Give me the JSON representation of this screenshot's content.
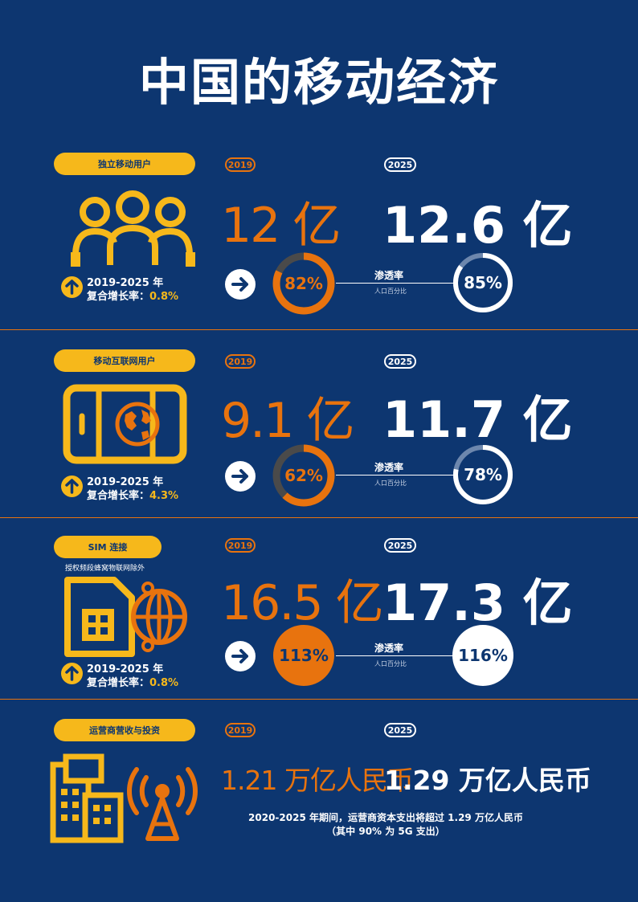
{
  "title": "中国的移动经济",
  "colors": {
    "background": "#0d3670",
    "orange": "#e8730e",
    "yellow": "#f6b81b",
    "white": "#ffffff"
  },
  "penetration_label": "渗透率",
  "penetration_sub": "人口百分比",
  "sections": [
    {
      "label": "独立移动用户",
      "icon": "users-icon",
      "year_2019": "2019",
      "year_2025": "2025",
      "value_2019": "12 亿",
      "value_2025": "12.6 亿",
      "pct_2019": "82%",
      "pct_2025": "85%",
      "pct_2019_value": 82,
      "pct_2025_value": 85,
      "growth_period": "2019-2025 年",
      "growth_label": "复合增长率：",
      "growth_value": "0.8%"
    },
    {
      "label": "移动互联网用户",
      "icon": "phone-globe-icon",
      "year_2019": "2019",
      "year_2025": "2025",
      "value_2019": "9.1 亿",
      "value_2025": "11.7 亿",
      "pct_2019": "62%",
      "pct_2025": "78%",
      "pct_2019_value": 62,
      "pct_2025_value": 78,
      "growth_period": "2019-2025 年",
      "growth_label": "复合增长率：",
      "growth_value": "4.3%"
    },
    {
      "label": "SIM 连接",
      "note": "授权频段蜂窝物联网除外",
      "icon": "sim-globe-icon",
      "year_2019": "2019",
      "year_2025": "2025",
      "value_2019": "16.5 亿",
      "value_2025": "17.3 亿",
      "pct_2019": "113%",
      "pct_2025": "116%",
      "pct_2019_value": 113,
      "pct_2025_value": 116,
      "growth_period": "2019-2025 年",
      "growth_label": "复合增长率：",
      "growth_value": "0.8%"
    },
    {
      "label": "运营商营收与投资",
      "icon": "buildings-tower-icon",
      "year_2019": "2019",
      "year_2025": "2025",
      "value_2019": "1.21 万亿人民币",
      "value_2025": "1.29 万亿人民币",
      "capex_line1": "2020-2025 年期间，运营商资本支出将超过 1.29 万亿人民币",
      "capex_line2": "（其中 90% 为 5G 支出）"
    }
  ]
}
